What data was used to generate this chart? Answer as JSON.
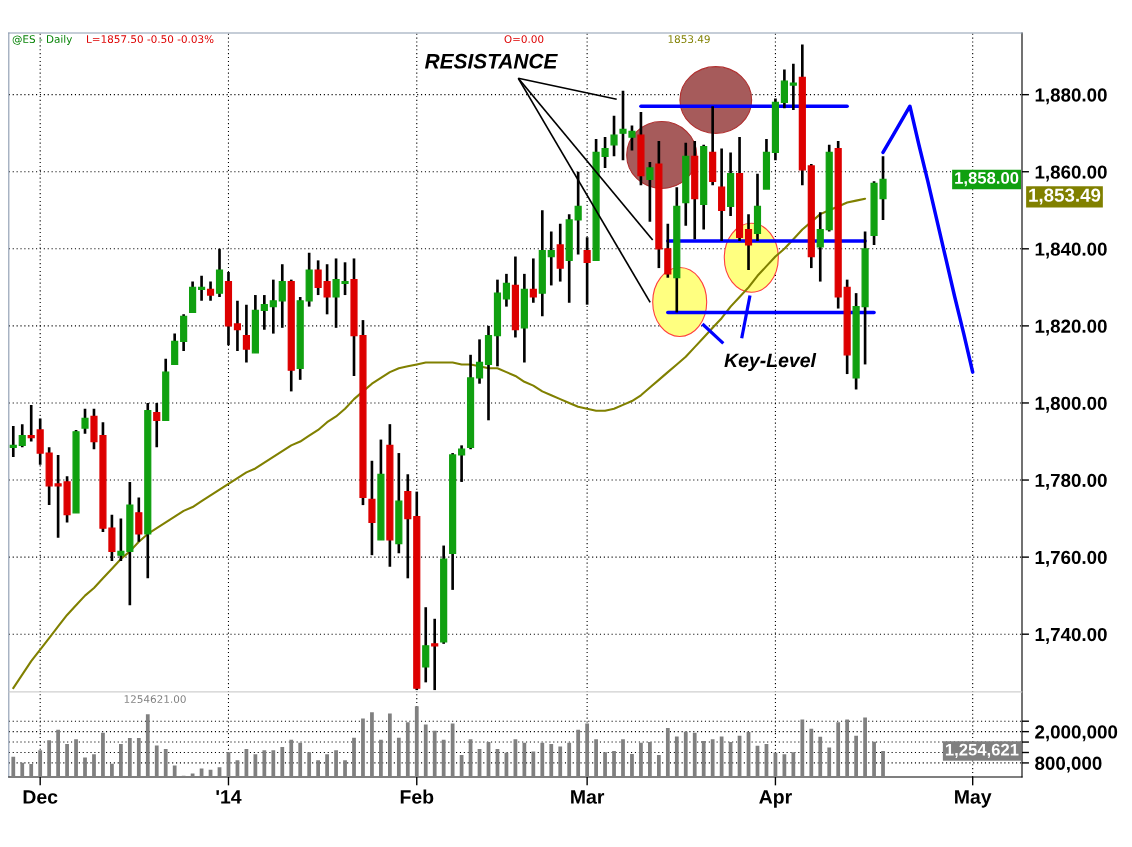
{
  "chart_data": [
    {
      "type": "candlestick",
      "title": "@ES - Daily",
      "categories": [
        null,
        null,
        null,
        null,
        null,
        null,
        null,
        null,
        null,
        null,
        null,
        null,
        null,
        null,
        null,
        null,
        null,
        null,
        null,
        null,
        null,
        null,
        null,
        null,
        null,
        null,
        null,
        null,
        null,
        null,
        null,
        null,
        null,
        null,
        null,
        null,
        null,
        null,
        null,
        null,
        null,
        null,
        null,
        null,
        null,
        null,
        null,
        null,
        null,
        null,
        null,
        null,
        null,
        null,
        null,
        null,
        null,
        null,
        null,
        null,
        null,
        null,
        null,
        null,
        null,
        null,
        null,
        null,
        null,
        null,
        null,
        null,
        null,
        null,
        null,
        null,
        null,
        null,
        null,
        null,
        null,
        null,
        null,
        null,
        null,
        null,
        null,
        null,
        null,
        null,
        null,
        null,
        null,
        null,
        null,
        null,
        null,
        null,
        null,
        null,
        null,
        null,
        null,
        null,
        null,
        null,
        null,
        null,
        null,
        null,
        null,
        null,
        null
      ],
      "ohlc": [
        [
          1788.5,
          1794,
          1786,
          1789
        ],
        [
          1789,
          1794.5,
          1788.5,
          1791.5
        ],
        [
          1791.5,
          1799.5,
          1790,
          1791
        ],
        [
          1793,
          1796,
          1784,
          1787
        ],
        [
          1787,
          1788.5,
          1773.5,
          1778.5
        ],
        [
          1779,
          1786.5,
          1765,
          1778.5
        ],
        [
          1779.5,
          1781,
          1769,
          1771
        ],
        [
          1771.5,
          1793,
          1771.5,
          1792.5
        ],
        [
          1793.5,
          1798.5,
          1792,
          1796
        ],
        [
          1796.5,
          1798.5,
          1788,
          1790
        ],
        [
          1791.5,
          1795,
          1766.5,
          1767.5
        ],
        [
          1767.5,
          1771,
          1759,
          1761.5
        ],
        [
          1760.5,
          1770,
          1759,
          1761.5
        ],
        [
          1761.5,
          1779.5,
          1747.5,
          1773.5
        ],
        [
          1771.5,
          1775.5,
          1764,
          1766
        ],
        [
          1766,
          1800,
          1754.5,
          1798
        ],
        [
          1797.5,
          1800,
          1788.5,
          1795.5
        ],
        [
          1795.5,
          1811.5,
          1795.5,
          1808
        ],
        [
          1810,
          1818,
          1810,
          1816
        ],
        [
          1816,
          1823,
          1813.5,
          1822.5
        ],
        [
          1823.5,
          1831.5,
          1823.5,
          1830
        ],
        [
          1829.5,
          1833,
          1826.5,
          1830
        ],
        [
          1829.5,
          1831.5,
          1826.5,
          1828
        ],
        [
          1828.5,
          1840,
          1827.5,
          1834.5
        ],
        [
          1831.5,
          1834,
          1815,
          1820
        ],
        [
          1820.5,
          1826.5,
          1813.5,
          1819
        ],
        [
          1817.5,
          1825.5,
          1810.5,
          1814
        ],
        [
          1813,
          1828,
          1813,
          1824
        ],
        [
          1824,
          1828,
          1819,
          1825.5
        ],
        [
          1825,
          1832,
          1818,
          1826.5
        ],
        [
          1826.5,
          1836,
          1819.5,
          1831.5
        ],
        [
          1831.5,
          1832,
          1803,
          1808.5
        ],
        [
          1809,
          1827.5,
          1806,
          1826.5
        ],
        [
          1826.5,
          1839,
          1825,
          1834.5
        ],
        [
          1834.5,
          1837,
          1828,
          1830
        ],
        [
          1831.5,
          1836,
          1823,
          1827.5
        ],
        [
          1827.5,
          1837.5,
          1819.5,
          1832
        ],
        [
          1831,
          1836.5,
          1828,
          1831.5
        ],
        [
          1832,
          1837.5,
          1807,
          1817.5
        ],
        [
          1817.5,
          1821.5,
          1773.5,
          1775.5
        ],
        [
          1775,
          1785,
          1760.5,
          1769
        ],
        [
          1764.5,
          1790.5,
          1764.5,
          1781.5
        ],
        [
          1789,
          1794.5,
          1757.5,
          1764.5
        ],
        [
          1763.5,
          1787,
          1761,
          1774.5
        ],
        [
          1777,
          1781.5,
          1754.5,
          1770
        ],
        [
          1770.5,
          1777,
          1725.5,
          1726
        ],
        [
          1731.5,
          1747,
          1727.5,
          1737
        ],
        [
          1737.5,
          1744,
          1725.5,
          1737
        ],
        [
          1738,
          1763,
          1737.5,
          1759.5
        ],
        [
          1761,
          1787,
          1751.5,
          1786.5
        ],
        [
          1786.5,
          1789,
          1779.5,
          1788
        ],
        [
          1788.5,
          1812.5,
          1788,
          1806.5
        ],
        [
          1806.5,
          1816.5,
          1805,
          1810.5
        ],
        [
          1810,
          1820,
          1795.5,
          1817.5
        ],
        [
          1817.5,
          1832,
          1809.5,
          1828.5
        ],
        [
          1827,
          1833.5,
          1825,
          1831
        ],
        [
          1830.5,
          1838,
          1817,
          1819
        ],
        [
          1819.5,
          1833.5,
          1810.5,
          1829.5
        ],
        [
          1829.5,
          1837.5,
          1826,
          1827.5
        ],
        [
          1828.5,
          1850,
          1822.5,
          1839.5
        ],
        [
          1838,
          1844.5,
          1830.5,
          1839.5
        ],
        [
          1841,
          1846.5,
          1831.5,
          1835
        ],
        [
          1837,
          1849,
          1826,
          1847.5
        ],
        [
          1847.5,
          1860,
          1838.5,
          1851
        ],
        [
          1839.5,
          1843,
          1825.5,
          1836.5
        ],
        [
          1837,
          1868.5,
          1837,
          1865
        ],
        [
          1864,
          1869,
          1861,
          1866
        ],
        [
          1867,
          1874.5,
          1864,
          1869.5
        ],
        [
          1870,
          1881,
          1863,
          1871
        ],
        [
          1869,
          1872,
          1865.5,
          1870.5
        ],
        [
          1869.5,
          1875.5,
          1856.5,
          1859
        ],
        [
          1858,
          1862.5,
          1847,
          1861
        ],
        [
          1862,
          1868,
          1835,
          1840
        ],
        [
          1840,
          1846.5,
          1832.5,
          1833.5
        ],
        [
          1832.5,
          1856,
          1823.5,
          1851
        ],
        [
          1852,
          1867.5,
          1846,
          1864
        ],
        [
          1864,
          1868,
          1842.5,
          1853
        ],
        [
          1851.5,
          1867,
          1845,
          1866.5
        ],
        [
          1865,
          1877,
          1856.5,
          1857.5
        ],
        [
          1856,
          1866,
          1842,
          1850
        ],
        [
          1851,
          1865,
          1848.5,
          1859.5
        ],
        [
          1859.5,
          1869,
          1842,
          1843
        ],
        [
          1845,
          1849,
          1834.5,
          1841
        ],
        [
          1844,
          1859.5,
          1842,
          1851
        ],
        [
          1855.5,
          1868.5,
          1855.5,
          1865
        ],
        [
          1865,
          1879,
          1863,
          1878
        ],
        [
          1878,
          1886.5,
          1876.5,
          1883.5
        ],
        [
          1882.5,
          1888,
          1876,
          1883
        ],
        [
          1884.5,
          1893,
          1856.5,
          1860.5
        ],
        [
          1861.5,
          1862,
          1835,
          1838
        ],
        [
          1840.5,
          1849.5,
          1831.5,
          1845
        ],
        [
          1845,
          1867,
          1844.5,
          1865
        ],
        [
          1866,
          1868,
          1824.5,
          1827.5
        ],
        [
          1830,
          1832,
          1807.5,
          1812.5
        ],
        [
          1806.5,
          1828.5,
          1803.5,
          1825
        ],
        [
          1825,
          1844.5,
          1810,
          1840
        ],
        [
          1843.5,
          1857.5,
          1841,
          1857
        ],
        [
          1853,
          1864,
          1847.5,
          1858
        ],
        null,
        null,
        null,
        null,
        null,
        null,
        null,
        null,
        null,
        null,
        null,
        null,
        null,
        null,
        null
      ],
      "colors": [
        "#10a010",
        "#10a010",
        "#dd0000",
        "#dd0000",
        "#dd0000",
        "#dd0000",
        "#dd0000",
        "#10a010",
        "#10a010",
        "#dd0000",
        "#dd0000",
        "#dd0000",
        "#10a010",
        "#10a010",
        "#dd0000",
        "#10a010",
        "#dd0000",
        "#10a010",
        "#10a010",
        "#10a010",
        "#10a010",
        "#10a010",
        "#dd0000",
        "#10a010",
        "#dd0000",
        "#dd0000",
        "#dd0000",
        "#10a010",
        "#10a010",
        "#10a010",
        "#10a010",
        "#dd0000",
        "#10a010",
        "#10a010",
        "#dd0000",
        "#dd0000",
        "#10a010",
        "#10a010",
        "#dd0000",
        "#dd0000",
        "#dd0000",
        "#10a010",
        "#dd0000",
        "#10a010",
        "#dd0000",
        "#dd0000",
        "#10a010",
        "#dd0000",
        "#10a010",
        "#10a010",
        "#10a010",
        "#10a010",
        "#10a010",
        "#10a010",
        "#10a010",
        "#10a010",
        "#dd0000",
        "#10a010",
        "#dd0000",
        "#10a010",
        "#10a010",
        "#dd0000",
        "#10a010",
        "#10a010",
        "#dd0000",
        "#10a010",
        "#10a010",
        "#10a010",
        "#10a010",
        "#10a010",
        "#dd0000",
        "#10a010",
        "#dd0000",
        "#dd0000",
        "#10a010",
        "#10a010",
        "#dd0000",
        "#10a010",
        "#dd0000",
        "#dd0000",
        "#10a010",
        "#dd0000",
        "#dd0000",
        "#10a010",
        "#10a010",
        "#10a010",
        "#10a010",
        "#10a010",
        "#dd0000",
        "#dd0000",
        "#10a010",
        "#10a010",
        "#dd0000",
        "#dd0000",
        "#10a010",
        "#10a010",
        "#10a010",
        "#10a010",
        null,
        null,
        null,
        null,
        null,
        null,
        null,
        null,
        null,
        null,
        null,
        null,
        null,
        null,
        null
      ],
      "series": [
        {
          "type": "line",
          "color": "#808000",
          "values": [
            1726,
            1729.5,
            1733,
            1736,
            1739,
            1742,
            1745,
            1747.5,
            1750,
            1752,
            1754.5,
            1757,
            1759.5,
            1761.5,
            1764,
            1766,
            1767.5,
            1769,
            1770.5,
            1772,
            1773,
            1774.5,
            1776,
            1777.5,
            1779,
            1780.5,
            1782,
            1783,
            1784.5,
            1786,
            1787.5,
            1789,
            1790,
            1791.5,
            1793,
            1795,
            1796.5,
            1798.5,
            1801,
            1803,
            1805,
            1806.5,
            1808,
            1809,
            1809.5,
            1810,
            1810.5,
            1810.5,
            1810.5,
            1810.5,
            1810,
            1810,
            1809.5,
            1809,
            1809,
            1808,
            1807,
            1805.5,
            1804.5,
            1803,
            1802,
            1801,
            1800,
            1799,
            1798.5,
            1798,
            1798,
            1798.5,
            1799.5,
            1800.5,
            1802,
            1804,
            1806,
            1808,
            1810,
            1812,
            1814.5,
            1817,
            1819.5,
            1822,
            1825,
            1827.5,
            1830,
            1833,
            1835.5,
            1838,
            1840,
            1842.5,
            1845,
            1847,
            1849,
            1850,
            1851,
            1852,
            1852.5,
            1853,
            null,
            null,
            null,
            null,
            null,
            null,
            null,
            null,
            null,
            null,
            null,
            null,
            null,
            null,
            null,
            null,
            null
          ]
        },
        {
          "type": "line",
          "color": "#0000ff",
          "values": [
            null,
            null,
            null,
            null,
            null,
            null,
            null,
            null,
            null,
            null,
            null,
            null,
            null,
            null,
            null,
            null,
            null,
            null,
            null,
            null,
            null,
            null,
            null,
            null,
            null,
            null,
            null,
            null,
            null,
            null,
            null,
            null,
            null,
            null,
            null,
            null,
            null,
            null,
            null,
            null,
            null,
            null,
            null,
            null,
            null,
            null,
            null,
            null,
            null,
            null,
            null,
            null,
            null,
            null,
            null,
            null,
            null,
            null,
            null,
            null,
            null,
            null,
            null,
            null,
            null,
            null,
            null,
            null,
            null,
            null,
            1877,
            1877,
            1877,
            1877,
            1877,
            1877,
            1877,
            1877,
            1877,
            1877,
            1877,
            1877,
            1877,
            1877,
            1877,
            1877,
            1877,
            1877,
            1877,
            1877,
            1877,
            1877,
            1877,
            1877,
            null,
            null,
            null,
            null,
            null,
            null,
            null,
            null,
            null,
            null,
            null,
            null,
            null,
            null,
            null,
            null,
            null,
            null,
            null
          ]
        },
        {
          "type": "line",
          "color": "#0000ff",
          "values": [
            null,
            null,
            null,
            null,
            null,
            null,
            null,
            null,
            null,
            null,
            null,
            null,
            null,
            null,
            null,
            null,
            null,
            null,
            null,
            null,
            null,
            null,
            null,
            null,
            null,
            null,
            null,
            null,
            null,
            null,
            null,
            null,
            null,
            null,
            null,
            null,
            null,
            null,
            null,
            null,
            null,
            null,
            null,
            null,
            null,
            null,
            null,
            null,
            null,
            null,
            null,
            null,
            null,
            null,
            null,
            null,
            null,
            null,
            null,
            null,
            null,
            null,
            null,
            null,
            null,
            null,
            null,
            null,
            null,
            null,
            null,
            null,
            null,
            1842,
            1842,
            1842,
            1842,
            1842,
            1842,
            1842,
            1842,
            1842,
            1842,
            1842,
            1842,
            1842,
            1842,
            1842,
            1842,
            1842,
            1842,
            1842,
            1842,
            1842,
            1842,
            1842,
            null,
            null,
            null,
            null,
            null,
            null,
            null,
            null,
            null,
            null,
            null,
            null,
            null,
            null,
            null,
            null,
            null
          ]
        },
        {
          "type": "line",
          "color": "#0000ff",
          "values": [
            null,
            null,
            null,
            null,
            null,
            null,
            null,
            null,
            null,
            null,
            null,
            null,
            null,
            null,
            null,
            null,
            null,
            null,
            null,
            null,
            null,
            null,
            null,
            null,
            null,
            null,
            null,
            null,
            null,
            null,
            null,
            null,
            null,
            null,
            null,
            null,
            null,
            null,
            null,
            null,
            null,
            null,
            null,
            null,
            null,
            null,
            null,
            null,
            null,
            null,
            null,
            null,
            null,
            null,
            null,
            null,
            null,
            null,
            null,
            null,
            null,
            null,
            null,
            null,
            null,
            null,
            null,
            null,
            null,
            null,
            null,
            null,
            null,
            1823.5,
            1823.5,
            1823.5,
            1823.5,
            1823.5,
            1823.5,
            1823.5,
            1823.5,
            1823.5,
            1823.5,
            1823.5,
            1823.5,
            1823.5,
            1823.5,
            1823.5,
            1823.5,
            1823.5,
            1823.5,
            1823.5,
            1823.5,
            1823.5,
            1823.5,
            1823.5,
            1823.5,
            null,
            null,
            null,
            null,
            null,
            null,
            null,
            null,
            null,
            null,
            null,
            null,
            null,
            null,
            null,
            null
          ]
        },
        {
          "type": "line",
          "color": "#0000ff",
          "values": [
            null,
            null,
            null,
            null,
            null,
            null,
            null,
            null,
            null,
            null,
            null,
            null,
            null,
            null,
            null,
            null,
            null,
            null,
            null,
            null,
            null,
            null,
            null,
            null,
            null,
            null,
            null,
            null,
            null,
            null,
            null,
            null,
            null,
            null,
            null,
            null,
            null,
            null,
            null,
            null,
            null,
            null,
            null,
            null,
            null,
            null,
            null,
            null,
            null,
            null,
            null,
            null,
            null,
            null,
            null,
            null,
            null,
            null,
            null,
            null,
            null,
            null,
            null,
            null,
            null,
            null,
            null,
            null,
            null,
            null,
            null,
            null,
            null,
            null,
            null,
            null,
            null,
            null,
            null,
            null,
            null,
            null,
            null,
            null,
            null,
            null,
            null,
            null,
            null,
            null,
            null,
            null,
            null,
            null,
            null,
            null,
            null,
            1865,
            1869,
            1873,
            1877,
            1867,
            1857.5,
            1847.5,
            1837.5,
            1827.5,
            1818,
            1808,
            null,
            null,
            null,
            null,
            null
          ]
        }
      ],
      "ylim": [
        1725,
        1896
      ],
      "yticks": [
        {
          "value": 1740,
          "label": "1,740.00"
        },
        {
          "value": 1760,
          "label": "1,760.00"
        },
        {
          "value": 1780,
          "label": "1,780.00"
        },
        {
          "value": 1800,
          "label": "1,800.00"
        },
        {
          "value": 1820,
          "label": "1,820.00"
        },
        {
          "value": 1840,
          "label": "1,840.00"
        },
        {
          "value": 1860,
          "label": "1,860.00"
        },
        {
          "value": 1880,
          "label": "1,880.00"
        }
      ],
      "grid": true,
      "annotations": [
        "L=1857.50 -0.50 -0.03%",
        "O=0.00",
        "1853.49",
        "RESISTANCE",
        {
          "text": "Key-Level",
          "y": 1823.5
        },
        "1,858.00",
        "1,853.49"
      ]
    },
    {
      "type": "bar",
      "color": "#808080",
      "categories": [
        null,
        null,
        null,
        "Dec",
        null,
        null,
        null,
        null,
        null,
        null,
        null,
        null,
        null,
        null,
        null,
        null,
        null,
        null,
        null,
        null,
        null,
        null,
        null,
        null,
        "'14",
        null,
        null,
        null,
        null,
        null,
        null,
        null,
        null,
        null,
        null,
        null,
        null,
        null,
        null,
        null,
        null,
        null,
        null,
        null,
        null,
        "Feb",
        null,
        null,
        null,
        null,
        null,
        null,
        null,
        null,
        null,
        null,
        null,
        null,
        null,
        null,
        null,
        null,
        null,
        null,
        "Mar",
        null,
        null,
        null,
        null,
        null,
        null,
        null,
        null,
        null,
        null,
        null,
        null,
        null,
        null,
        null,
        null,
        null,
        null,
        null,
        null,
        "Apr",
        null,
        null,
        null,
        null,
        null,
        null,
        null,
        null,
        null,
        null,
        null,
        null,
        null,
        null,
        null,
        null,
        null,
        null,
        null,
        null,
        null,
        "May",
        null,
        null,
        null,
        null,
        null
      ],
      "values": [
        1040000,
        810000,
        760000,
        1290000,
        1670000,
        2070000,
        1530000,
        1710000,
        1010000,
        1130000,
        1960000,
        770000,
        1530000,
        1760000,
        1760000,
        2670000,
        1470000,
        1330000,
        700000,
        310000,
        390000,
        590000,
        540000,
        630000,
        1210000,
        900000,
        1330000,
        1130000,
        1290000,
        1290000,
        1410000,
        1690000,
        1570000,
        1210000,
        900000,
        1130000,
        1290000,
        900000,
        1770000,
        2500000,
        2740000,
        1690000,
        2700000,
        1770000,
        2360000,
        2970000,
        2270000,
        2030000,
        1690000,
        2310000,
        1100000,
        1710000,
        1330000,
        1600000,
        1330000,
        1190000,
        1710000,
        1570000,
        1240000,
        1570000,
        1530000,
        1430000,
        1570000,
        2070000,
        2310000,
        1710000,
        1210000,
        1260000,
        1710000,
        1140000,
        1570000,
        1600000,
        1100000,
        2140000,
        1810000,
        2000000,
        1960000,
        1640000,
        1710000,
        1810000,
        1600000,
        1840000,
        1990000,
        1460000,
        1530000,
        1190000,
        1130000,
        1210000,
        2470000,
        2110000,
        1800000,
        1390000,
        2360000,
        2470000,
        1840000,
        2540000,
        1610000,
        1254621,
        null,
        null,
        null,
        null,
        null,
        null,
        null,
        null,
        null,
        null,
        null,
        null,
        null,
        null,
        null
      ],
      "ylim": [
        260000,
        3520000
      ],
      "yticks": [
        {
          "value": 800000,
          "label": "800,000"
        },
        {
          "value": 1200000,
          "label": null
        },
        {
          "value": 1600000,
          "label": null
        },
        {
          "value": 2000000,
          "label": "2,000,000"
        },
        {
          "value": 2400000,
          "label": null
        }
      ],
      "grid": true,
      "annotations": [
        "1254621.00",
        "1,254,621"
      ]
    }
  ]
}
